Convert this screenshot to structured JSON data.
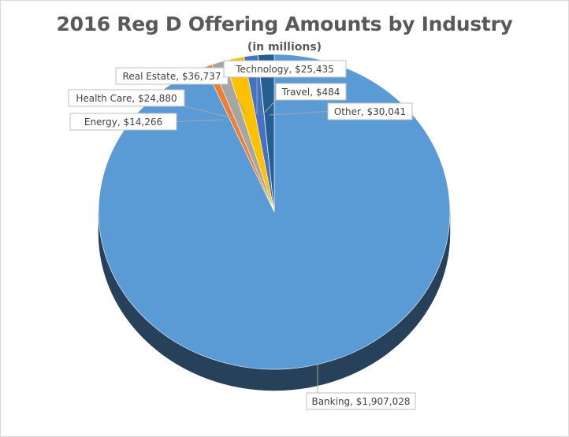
{
  "chart_data": {
    "type": "pie",
    "title": "2016 Reg D Offering Amounts by Industry",
    "subtitle": "(in millions)",
    "three_d": true,
    "start_angle_deg": 0,
    "slices": [
      {
        "name": "Banking",
        "value": 1907028,
        "label": "Banking, $1,907,028",
        "color": "#5b9bd5"
      },
      {
        "name": "Energy",
        "value": 14266,
        "label": "Energy, $14,266",
        "color": "#ed7d31"
      },
      {
        "name": "Health Care",
        "value": 24880,
        "label": "Health Care, $24,880",
        "color": "#a5a5a5"
      },
      {
        "name": "Real Estate",
        "value": 36737,
        "label": "Real Estate, $36,737",
        "color": "#ffc000"
      },
      {
        "name": "Technology",
        "value": 25435,
        "label": "Technology, $25,435",
        "color": "#4472c4"
      },
      {
        "name": "Travel",
        "value": 484,
        "label": "Travel, $484",
        "color": "#70ad47"
      },
      {
        "name": "Other",
        "value": 30041,
        "label": "Other, $30,041",
        "color": "#255e91"
      }
    ]
  }
}
